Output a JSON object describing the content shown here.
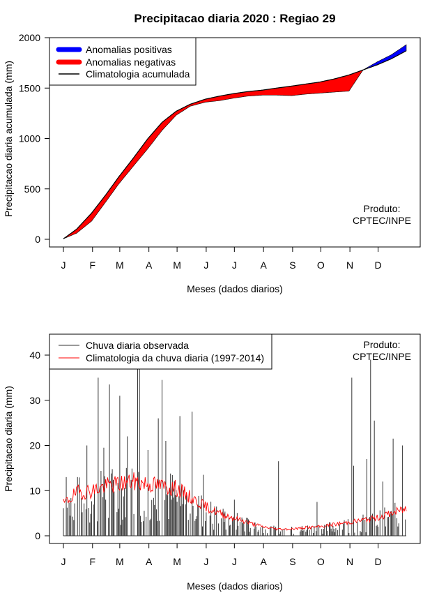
{
  "title": "Precipitacao diaria 2020 : Regiao 29",
  "months": [
    "J",
    "F",
    "M",
    "A",
    "M",
    "J",
    "J",
    "A",
    "S",
    "O",
    "N",
    "D"
  ],
  "colors": {
    "positive": "#0000ff",
    "negative": "#ff0000",
    "obs": "#333333",
    "clim": "#ff0000"
  },
  "chart_data": [
    {
      "type": "area",
      "xlabel": "Meses (dados diarios)",
      "ylabel": "Precipitacao diaria acumulada (mm)",
      "ylim": [
        0,
        2000
      ],
      "yticks": [
        0,
        500,
        1000,
        1500,
        2000
      ],
      "annotation": [
        "Produto:",
        "CPTEC/INPE"
      ],
      "legend_position": "top-left",
      "legend": [
        {
          "label": "Anomalias positivas",
          "key": "positive"
        },
        {
          "label": "Anomalias negativas",
          "key": "negative"
        },
        {
          "label": "Climatologia acumulada",
          "key": "line"
        }
      ],
      "x_day": [
        1,
        15,
        31,
        46,
        60,
        75,
        91,
        106,
        121,
        136,
        152,
        167,
        182,
        197,
        213,
        228,
        244,
        259,
        274,
        289,
        305,
        320,
        335,
        350,
        366
      ],
      "climatology_cumulative": [
        5,
        100,
        260,
        440,
        620,
        800,
        1000,
        1160,
        1270,
        1340,
        1390,
        1420,
        1445,
        1465,
        1480,
        1500,
        1520,
        1540,
        1560,
        1590,
        1630,
        1680,
        1730,
        1790,
        1870
      ],
      "observed_cumulative": [
        5,
        60,
        180,
        370,
        550,
        720,
        900,
        1080,
        1230,
        1320,
        1360,
        1375,
        1400,
        1420,
        1430,
        1430,
        1425,
        1440,
        1450,
        1460,
        1470,
        1680,
        1760,
        1830,
        1930
      ]
    },
    {
      "type": "bar",
      "xlabel": "Meses (dados diarios)",
      "ylabel": "Precipitacao diaria (mm)",
      "ylim": [
        0,
        40
      ],
      "yticks": [
        0,
        10,
        20,
        30,
        40
      ],
      "annotation": [
        "Produto:",
        "CPTEC/INPE"
      ],
      "legend_position": "top-left",
      "legend": [
        {
          "label": "Chuva diaria observada",
          "key": "obs"
        },
        {
          "label": "Climatologia da chuva diaria (1997-2014)",
          "key": "clim"
        }
      ],
      "observed_peaks": [
        {
          "day": 4,
          "value": 13
        },
        {
          "day": 26,
          "value": 20
        },
        {
          "day": 38,
          "value": 35
        },
        {
          "day": 44,
          "value": 19.5
        },
        {
          "day": 50,
          "value": 33.5
        },
        {
          "day": 61,
          "value": 31
        },
        {
          "day": 69,
          "value": 22
        },
        {
          "day": 80,
          "value": 37
        },
        {
          "day": 82,
          "value": 41
        },
        {
          "day": 91,
          "value": 19
        },
        {
          "day": 102,
          "value": 26
        },
        {
          "day": 106,
          "value": 34.5
        },
        {
          "day": 110,
          "value": 21
        },
        {
          "day": 125,
          "value": 26.5
        },
        {
          "day": 138,
          "value": 27.5
        },
        {
          "day": 150,
          "value": 13.5
        },
        {
          "day": 162,
          "value": 6.5
        },
        {
          "day": 183,
          "value": 8
        },
        {
          "day": 230,
          "value": 16.5
        },
        {
          "day": 271,
          "value": 7.5
        },
        {
          "day": 308,
          "value": 35
        },
        {
          "day": 310,
          "value": 15.5
        },
        {
          "day": 324,
          "value": 17
        },
        {
          "day": 328,
          "value": 39
        },
        {
          "day": 332,
          "value": 25.5
        },
        {
          "day": 341,
          "value": 12
        },
        {
          "day": 352,
          "value": 21.5
        },
        {
          "day": 362,
          "value": 20
        }
      ],
      "climatology_daily": {
        "x_day": [
          1,
          15,
          31,
          46,
          60,
          75,
          91,
          106,
          121,
          136,
          152,
          167,
          182,
          197,
          213,
          228,
          244,
          259,
          274,
          289,
          305,
          320,
          335,
          350,
          366
        ],
        "values": [
          7,
          9.5,
          10,
          11,
          11.5,
          12,
          11.5,
          11,
          10.5,
          8.5,
          6.5,
          5,
          4,
          3,
          2,
          1.5,
          1.5,
          1.8,
          2,
          2.5,
          3,
          3.5,
          4,
          5,
          6
        ]
      }
    }
  ]
}
